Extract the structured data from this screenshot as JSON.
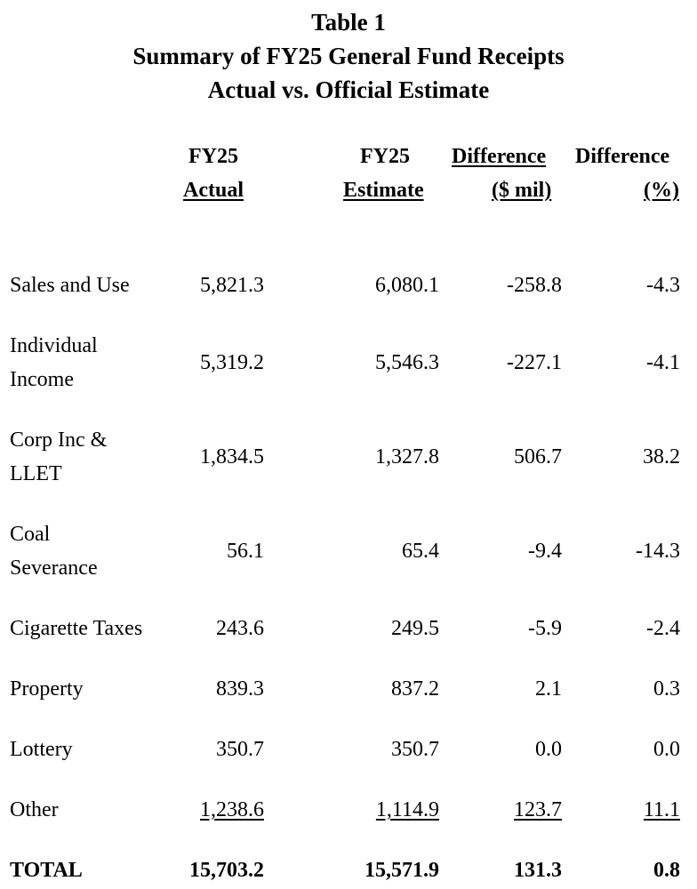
{
  "title": {
    "line1": "Table 1",
    "line2": "Summary of FY25 General Fund Receipts",
    "line3": "Actual vs. Official Estimate"
  },
  "headers": {
    "actual": {
      "top": "FY25",
      "bottom": "Actual"
    },
    "estimate": {
      "top": "FY25",
      "bottom": "Estimate"
    },
    "diff_mil": {
      "top": "Difference",
      "bottom": "($ mil)"
    },
    "diff_pct": {
      "top": "Difference",
      "bottom": "(%)"
    }
  },
  "rows": [
    {
      "label": [
        "Sales and Use"
      ],
      "actual": "5,821.3",
      "estimate": "6,080.1",
      "diff_mil": "-258.8",
      "diff_pct": "-4.3"
    },
    {
      "label": [
        "Individual",
        "Income"
      ],
      "actual": "5,319.2",
      "estimate": "5,546.3",
      "diff_mil": "-227.1",
      "diff_pct": "-4.1"
    },
    {
      "label": [
        "Corp Inc &",
        "LLET"
      ],
      "actual": "1,834.5",
      "estimate": "1,327.8",
      "diff_mil": "506.7",
      "diff_pct": "38.2"
    },
    {
      "label": [
        "Coal",
        "Severance"
      ],
      "actual": "56.1",
      "estimate": "65.4",
      "diff_mil": "-9.4",
      "diff_pct": "-14.3"
    },
    {
      "label": [
        "Cigarette Taxes"
      ],
      "actual": "243.6",
      "estimate": "249.5",
      "diff_mil": "-5.9",
      "diff_pct": "-2.4"
    },
    {
      "label": [
        "Property"
      ],
      "actual": "839.3",
      "estimate": "837.2",
      "diff_mil": "2.1",
      "diff_pct": "0.3"
    },
    {
      "label": [
        "Lottery"
      ],
      "actual": "350.7",
      "estimate": "350.7",
      "diff_mil": "0.0",
      "diff_pct": "0.0"
    },
    {
      "label": [
        "Other"
      ],
      "actual": "1,238.6",
      "estimate": "1,114.9",
      "diff_mil": "123.7",
      "diff_pct": "11.1"
    },
    {
      "label": [
        "TOTAL"
      ],
      "actual": "15,703.2",
      "estimate": "15,571.9",
      "diff_mil": "131.3",
      "diff_pct": "0.8"
    }
  ]
}
